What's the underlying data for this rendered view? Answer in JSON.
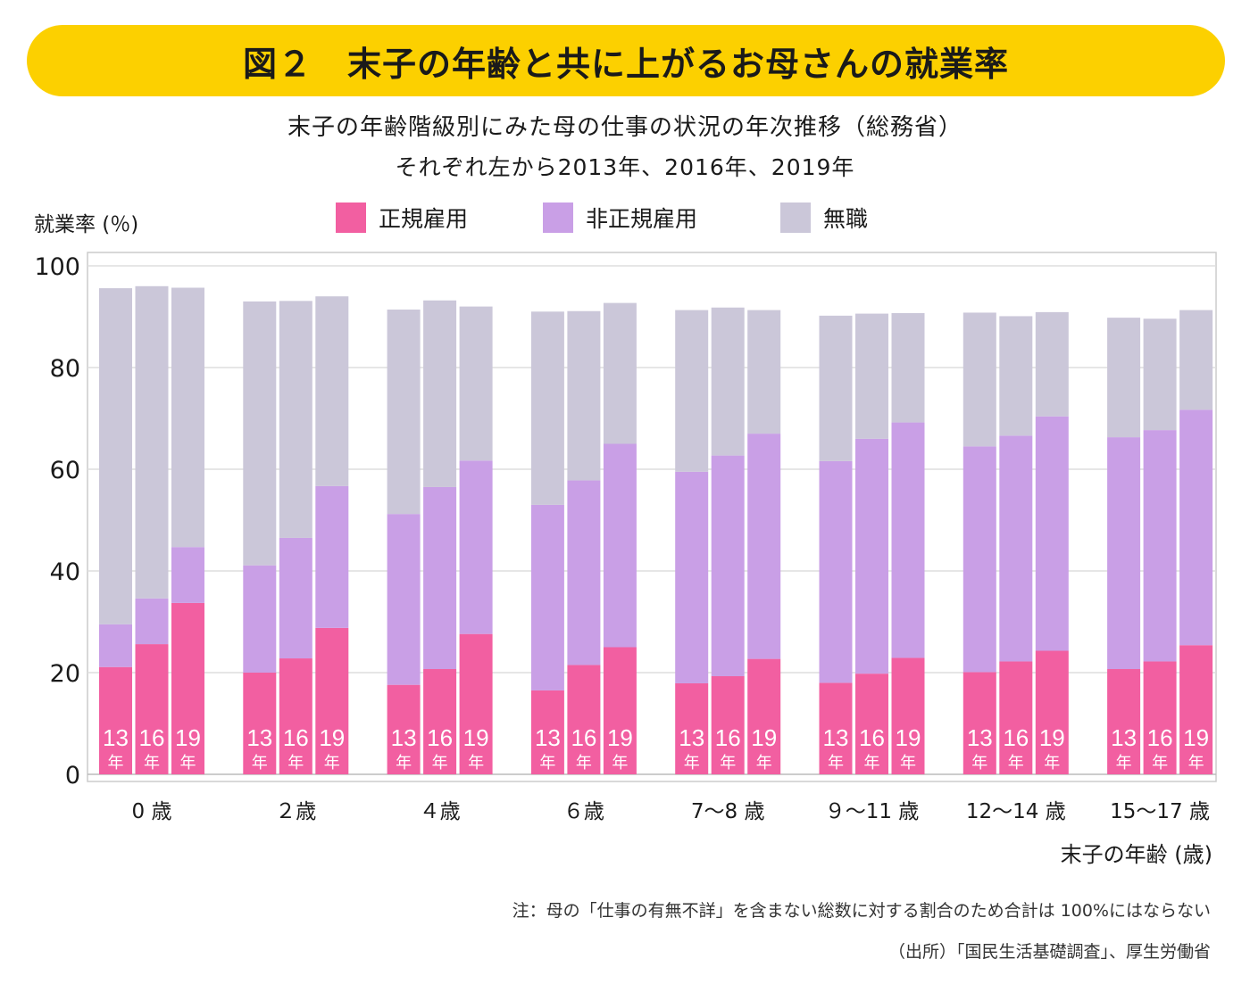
{
  "header": {
    "title": "図２　末子の年齢と共に上がるお母さんの就業率",
    "subtitle": "末子の年齢階級別にみた母の仕事の状況の年次推移（総務省）",
    "subtitle2": "それぞれ左から2013年、2016年、2019年"
  },
  "legend": {
    "regular": "正規雇用",
    "nonregular": "非正規雇用",
    "unemployed": "無職"
  },
  "colors": {
    "regular": "#f25fa1",
    "nonregular": "#c99fe6",
    "unemployed": "#cbc7d9",
    "banner": "#fcd000",
    "grid": "#dddddd"
  },
  "chart_data": {
    "type": "bar",
    "stacked": true,
    "ylabel": "就業率 (％)",
    "xlabel": "末子の年齢 (歳)",
    "ylim": [
      0,
      100
    ],
    "yticks": [
      0,
      20,
      40,
      60,
      80,
      100
    ],
    "grid": true,
    "legend_position": "top",
    "categories": [
      "0 歳",
      "２歳",
      "４歳",
      "６歳",
      "7〜8 歳",
      "９〜11 歳",
      "12〜14 歳",
      "15〜17 歳"
    ],
    "years": [
      "2013",
      "2016",
      "2019"
    ],
    "bar_labels": [
      [
        "13",
        "年"
      ],
      [
        "16",
        "年"
      ],
      [
        "19",
        "年"
      ]
    ],
    "series": [
      {
        "name": "正規雇用",
        "values": [
          [
            21.1,
            25.6,
            33.7
          ],
          [
            20.0,
            22.8,
            28.8
          ],
          [
            17.6,
            20.7,
            27.6
          ],
          [
            16.5,
            21.5,
            25.0
          ],
          [
            17.9,
            19.3,
            22.7
          ],
          [
            18.0,
            19.8,
            22.9
          ],
          [
            20.1,
            22.2,
            24.3
          ],
          [
            20.7,
            22.2,
            25.4
          ]
        ]
      },
      {
        "name": "非正規雇用",
        "values": [
          [
            8.4,
            9.0,
            11.0
          ],
          [
            21.1,
            23.7,
            27.9
          ],
          [
            33.6,
            35.8,
            34.1
          ],
          [
            36.5,
            36.3,
            40.0
          ],
          [
            41.6,
            43.4,
            44.3
          ],
          [
            43.6,
            46.2,
            46.3
          ],
          [
            44.4,
            44.4,
            46.1
          ],
          [
            45.6,
            45.5,
            46.3
          ]
        ]
      },
      {
        "name": "無職",
        "values": [
          [
            66.1,
            61.4,
            51.0
          ],
          [
            51.9,
            46.6,
            37.3
          ],
          [
            40.2,
            36.7,
            30.3
          ],
          [
            38.0,
            33.3,
            27.7
          ],
          [
            31.8,
            29.1,
            24.3
          ],
          [
            28.6,
            24.6,
            21.5
          ],
          [
            26.3,
            23.5,
            20.5
          ],
          [
            23.5,
            21.9,
            19.6
          ]
        ]
      }
    ]
  },
  "notes": {
    "note1": "注：母の「仕事の有無不詳」を含まない総数に対する割合のため合計は 100%にはならない",
    "source": "（出所）「国民生活基礎調査」、厚生労働省"
  }
}
